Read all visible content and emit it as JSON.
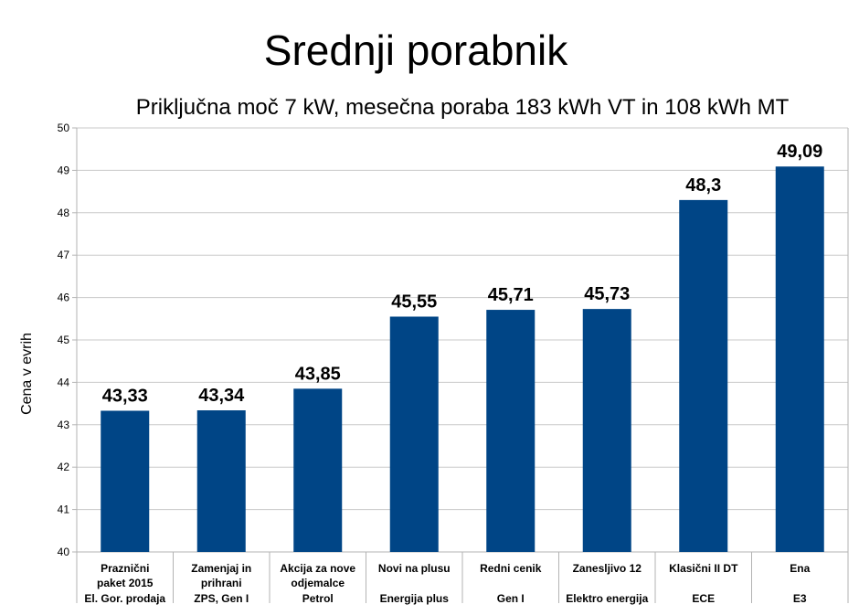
{
  "chart_data": {
    "type": "bar",
    "title": "Srednji porabnik",
    "subtitle": "Priključna moč 7 kW, mesečna poraba 183 kWh VT in 108 kWh MT",
    "xlabel": "",
    "ylabel": "Cena v evrih",
    "ylim": [
      40,
      50
    ],
    "yticks": [
      "40",
      "41",
      "42",
      "43",
      "44",
      "45",
      "46",
      "47",
      "48",
      "49",
      "50"
    ],
    "grid": true,
    "bar_color": "#004586",
    "categories": [
      {
        "lines": [
          "Praznični",
          "paket 2015"
        ],
        "supplier": "El. Gor. prodaja"
      },
      {
        "lines": [
          "Zamenjaj in",
          "prihrani"
        ],
        "supplier": "ZPS, Gen I"
      },
      {
        "lines": [
          "Akcija za nove",
          "odjemalce"
        ],
        "supplier": "Petrol"
      },
      {
        "lines": [
          "Novi na plusu"
        ],
        "supplier": "Energija plus"
      },
      {
        "lines": [
          "Redni cenik"
        ],
        "supplier": "Gen I"
      },
      {
        "lines": [
          "Zanesljivo 12"
        ],
        "supplier": "Elektro energija"
      },
      {
        "lines": [
          "Klasični II DT"
        ],
        "supplier": "ECE"
      },
      {
        "lines": [
          "Ena"
        ],
        "supplier": "E3"
      }
    ],
    "values": [
      43.33,
      43.34,
      43.85,
      45.55,
      45.71,
      45.73,
      48.3,
      49.09
    ],
    "data_labels": [
      "43,33",
      "43,34",
      "43,85",
      "45,55",
      "45,71",
      "45,73",
      "48,3",
      "49,09"
    ]
  }
}
